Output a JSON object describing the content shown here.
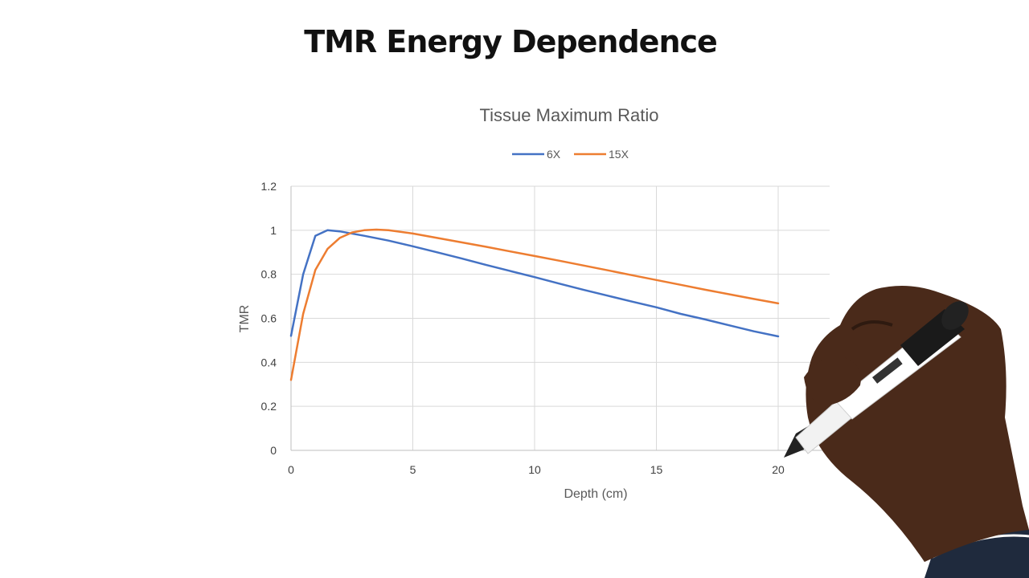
{
  "slide": {
    "title": "TMR Energy Dependence"
  },
  "chart_data": {
    "type": "line",
    "title": "Tissue Maximum Ratio",
    "xlabel": "Depth (cm)",
    "ylabel": "TMR",
    "xlim": [
      0,
      20
    ],
    "ylim": [
      0,
      1.2
    ],
    "x_ticks": [
      0,
      5,
      10,
      15,
      20
    ],
    "y_ticks": [
      0,
      0.2,
      0.4,
      0.6,
      0.8,
      1,
      1.2
    ],
    "grid": true,
    "legend": "top",
    "series": [
      {
        "name": "6X",
        "color": "#4472c4",
        "x": [
          0,
          0.5,
          1,
          1.5,
          2,
          3,
          4,
          5,
          6,
          7,
          8,
          9,
          10,
          11,
          12,
          13,
          14,
          15,
          16,
          17,
          18,
          19,
          20
        ],
        "y": [
          0.52,
          0.8,
          0.975,
          1.0,
          0.995,
          0.975,
          0.953,
          0.927,
          0.9,
          0.872,
          0.843,
          0.815,
          0.787,
          0.758,
          0.73,
          0.703,
          0.676,
          0.65,
          0.62,
          0.595,
          0.568,
          0.541,
          0.518
        ]
      },
      {
        "name": "15X",
        "color": "#ed7d31",
        "x": [
          0,
          0.5,
          1,
          1.5,
          2,
          2.5,
          3,
          3.5,
          4,
          5,
          6,
          7,
          8,
          9,
          10,
          11,
          12,
          13,
          14,
          15,
          16,
          17,
          18,
          19,
          20
        ],
        "y": [
          0.32,
          0.62,
          0.82,
          0.915,
          0.965,
          0.99,
          1.0,
          1.003,
          1.0,
          0.985,
          0.965,
          0.945,
          0.925,
          0.904,
          0.883,
          0.862,
          0.84,
          0.818,
          0.796,
          0.774,
          0.752,
          0.73,
          0.709,
          0.688,
          0.668
        ]
      }
    ]
  }
}
